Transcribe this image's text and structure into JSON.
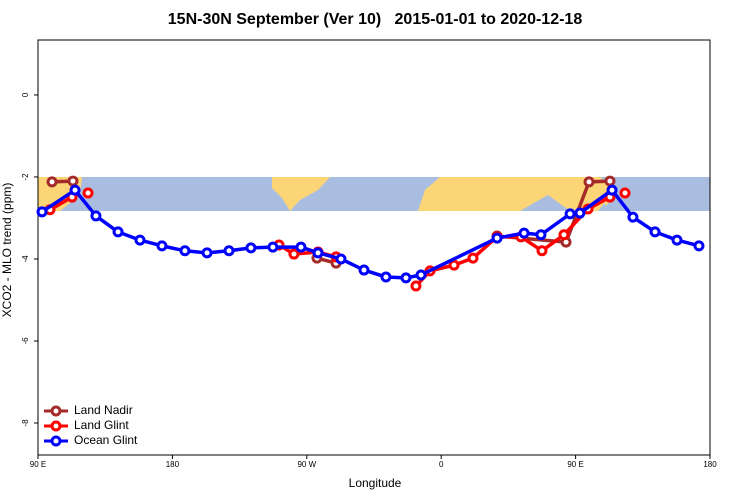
{
  "chart_data": {
    "type": "line",
    "title": "15N-30N September (Ver 10)   2015-01-01 to 2020-12-18",
    "x_label": "Longitude",
    "y_label": "XCO2 - MLO trend (ppm)",
    "xlim": [
      90,
      540
    ],
    "ylim": [
      -8.78,
      1.34
    ],
    "xticks": [
      {
        "value": 90,
        "label": "90 E"
      },
      {
        "value": 180,
        "label": "180"
      },
      {
        "value": 270,
        "label": "90 W"
      },
      {
        "value": 360,
        "label": "0"
      },
      {
        "value": 450,
        "label": "90 E"
      },
      {
        "value": 540,
        "label": "180"
      }
    ],
    "yticks": [
      0,
      -2,
      -4,
      -6,
      -8
    ],
    "legend": "bottomleft",
    "series": [
      {
        "name": "Land Nadir",
        "color": "#a52a2a",
        "x": [
          99.4,
          113.4,
          null,
          276.8,
          289.6,
          null,
          397.4,
          443.6,
          459.0,
          473.0
        ],
        "values": [
          -2.12,
          -2.1,
          null,
          -3.98,
          -4.1,
          null,
          -3.44,
          -3.59,
          -2.12,
          -2.1
        ]
      },
      {
        "name": "Land Glint",
        "color": "#ff0000",
        "x": [
          98.0,
          112.8,
          null,
          123.5,
          null,
          251.4,
          261.4,
          277.5,
          289.6,
          null,
          343.1,
          352.5,
          368.6,
          381.3,
          397.4,
          413.4,
          427.5,
          442.2,
          458.3,
          473.0,
          null,
          483.1
        ],
        "values": [
          -2.8,
          -2.49,
          null,
          -2.39,
          null,
          -3.66,
          -3.88,
          -3.83,
          -3.95,
          null,
          -4.66,
          -4.29,
          -4.15,
          -3.98,
          -3.46,
          -3.46,
          -3.8,
          -3.41,
          -2.78,
          -2.49,
          null,
          -2.39
        ]
      },
      {
        "name": "Ocean Glint",
        "color": "#0000ff",
        "x": [
          92.7,
          114.8,
          128.8,
          143.6,
          158.3,
          173.0,
          188.4,
          203.2,
          217.9,
          232.6,
          247.3,
          266.1,
          277.5,
          292.9,
          308.3,
          323.0,
          336.4,
          346.5,
          397.4,
          415.5,
          426.8,
          446.3,
          452.9,
          474.4,
          488.4,
          503.2,
          517.9,
          532.6
        ],
        "values": [
          -2.85,
          -2.32,
          -2.95,
          -3.34,
          -3.54,
          -3.68,
          -3.8,
          -3.85,
          -3.8,
          -3.73,
          -3.71,
          -3.71,
          -3.85,
          -4.0,
          -4.27,
          -4.44,
          -4.46,
          -4.39,
          -3.49,
          -3.37,
          -3.41,
          -2.9,
          -2.88,
          -2.32,
          -2.98,
          -3.34,
          -3.54,
          -3.68
        ]
      }
    ]
  }
}
